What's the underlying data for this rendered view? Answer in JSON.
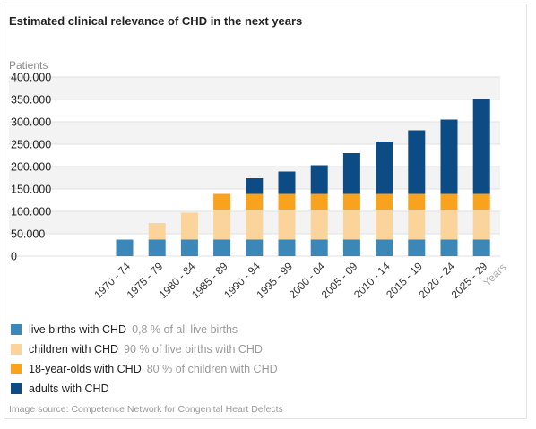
{
  "chart_data": {
    "type": "bar",
    "stacked": true,
    "title": "Estimated clinical relevance of CHD in the next years",
    "ylabel": "Patients",
    "xlabel": "Years",
    "ylim": [
      0,
      400000
    ],
    "y_ticks": [
      "0",
      "50.000",
      "100.000",
      "150.000",
      "200.000",
      "250.000",
      "300.000",
      "350.000",
      "400.000"
    ],
    "y_tick_values": [
      0,
      50000,
      100000,
      150000,
      200000,
      250000,
      300000,
      350000,
      400000
    ],
    "categories": [
      "1970 - 74",
      "1975 - 79",
      "1980 - 84",
      "1985 - 89",
      "1990 - 94",
      "1995 - 99",
      "2000 - 04",
      "2005 - 09",
      "2010 - 14",
      "2015 - 19",
      "2020 - 24",
      "2025 - 29"
    ],
    "series": [
      {
        "name": "live births with CHD",
        "note": "0,8 % of all live births",
        "color": "#3a87b8",
        "values": [
          37000,
          37000,
          37000,
          37000,
          37000,
          37000,
          37000,
          37000,
          37000,
          37000,
          37000,
          37000
        ]
      },
      {
        "name": "children with CHD",
        "note": "90 % of live births with CHD",
        "color": "#fad49a",
        "values": [
          0,
          37000,
          60000,
          67000,
          67000,
          67000,
          67000,
          67000,
          67000,
          67000,
          67000,
          67000
        ]
      },
      {
        "name": "18-year-olds with CHD",
        "note": "80 % of children with CHD",
        "color": "#f8a21d",
        "values": [
          0,
          0,
          0,
          35000,
          35000,
          35000,
          35000,
          35000,
          35000,
          35000,
          35000,
          35000
        ]
      },
      {
        "name": "adults with CHD",
        "note": "",
        "color": "#0d4b84",
        "values": [
          0,
          0,
          0,
          0,
          35000,
          50000,
          64000,
          91000,
          117000,
          142000,
          166000,
          212000
        ]
      }
    ],
    "grid": true,
    "legend_position": "bottom-left"
  },
  "source": "Image source: Competence Network for Congenital Heart Defects"
}
